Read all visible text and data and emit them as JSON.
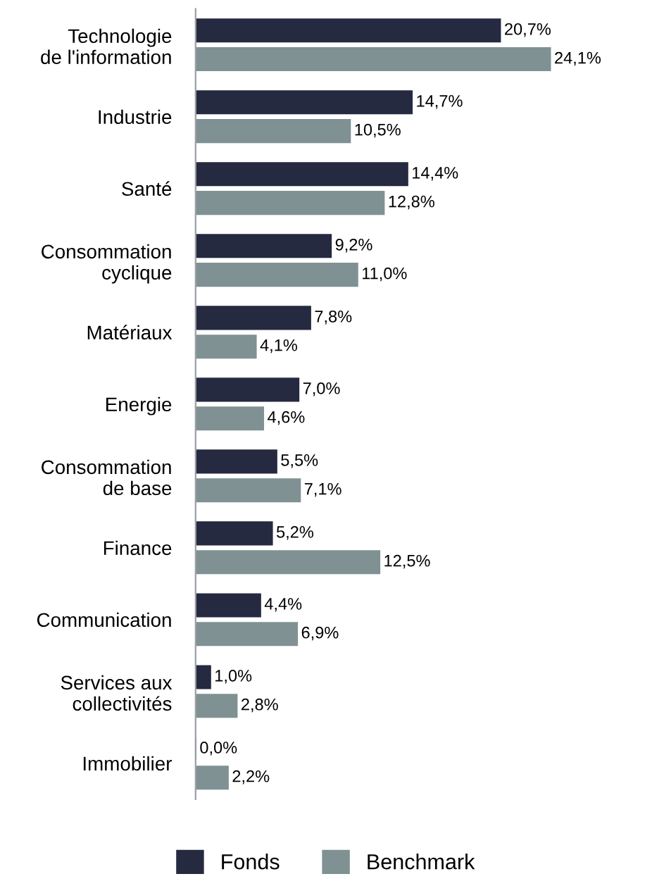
{
  "chart_data": {
    "type": "bar",
    "orientation": "horizontal",
    "categories": [
      "Technologie\nde l'information",
      "Industrie",
      "Santé",
      "Consommation\ncyclique",
      "Matériaux",
      "Energie",
      "Consommation\nde base",
      "Finance",
      "Communication",
      "Services aux\ncollectivités",
      "Immobilier"
    ],
    "series": [
      {
        "name": "Fonds",
        "color": "#262a40",
        "values": [
          20.7,
          14.7,
          14.4,
          9.2,
          7.8,
          7.0,
          5.5,
          5.2,
          4.4,
          1.0,
          0.0
        ],
        "value_labels": [
          "20,7%",
          "14,7%",
          "14,4%",
          "9,2%",
          "7,8%",
          "7,0%",
          "5,5%",
          "5,2%",
          "4,4%",
          "1,0%",
          "0,0%"
        ]
      },
      {
        "name": "Benchmark",
        "color": "#7f9193",
        "values": [
          24.1,
          10.5,
          12.8,
          11.0,
          4.1,
          4.6,
          7.1,
          12.5,
          6.9,
          2.8,
          2.2
        ],
        "value_labels": [
          "24,1%",
          "10,5%",
          "12,8%",
          "11,0%",
          "4,1%",
          "4,6%",
          "7,1%",
          "12,5%",
          "6,9%",
          "2,8%",
          "2,2%"
        ]
      }
    ],
    "tick_labels": "y",
    "grid": false,
    "legend": "bottom"
  }
}
